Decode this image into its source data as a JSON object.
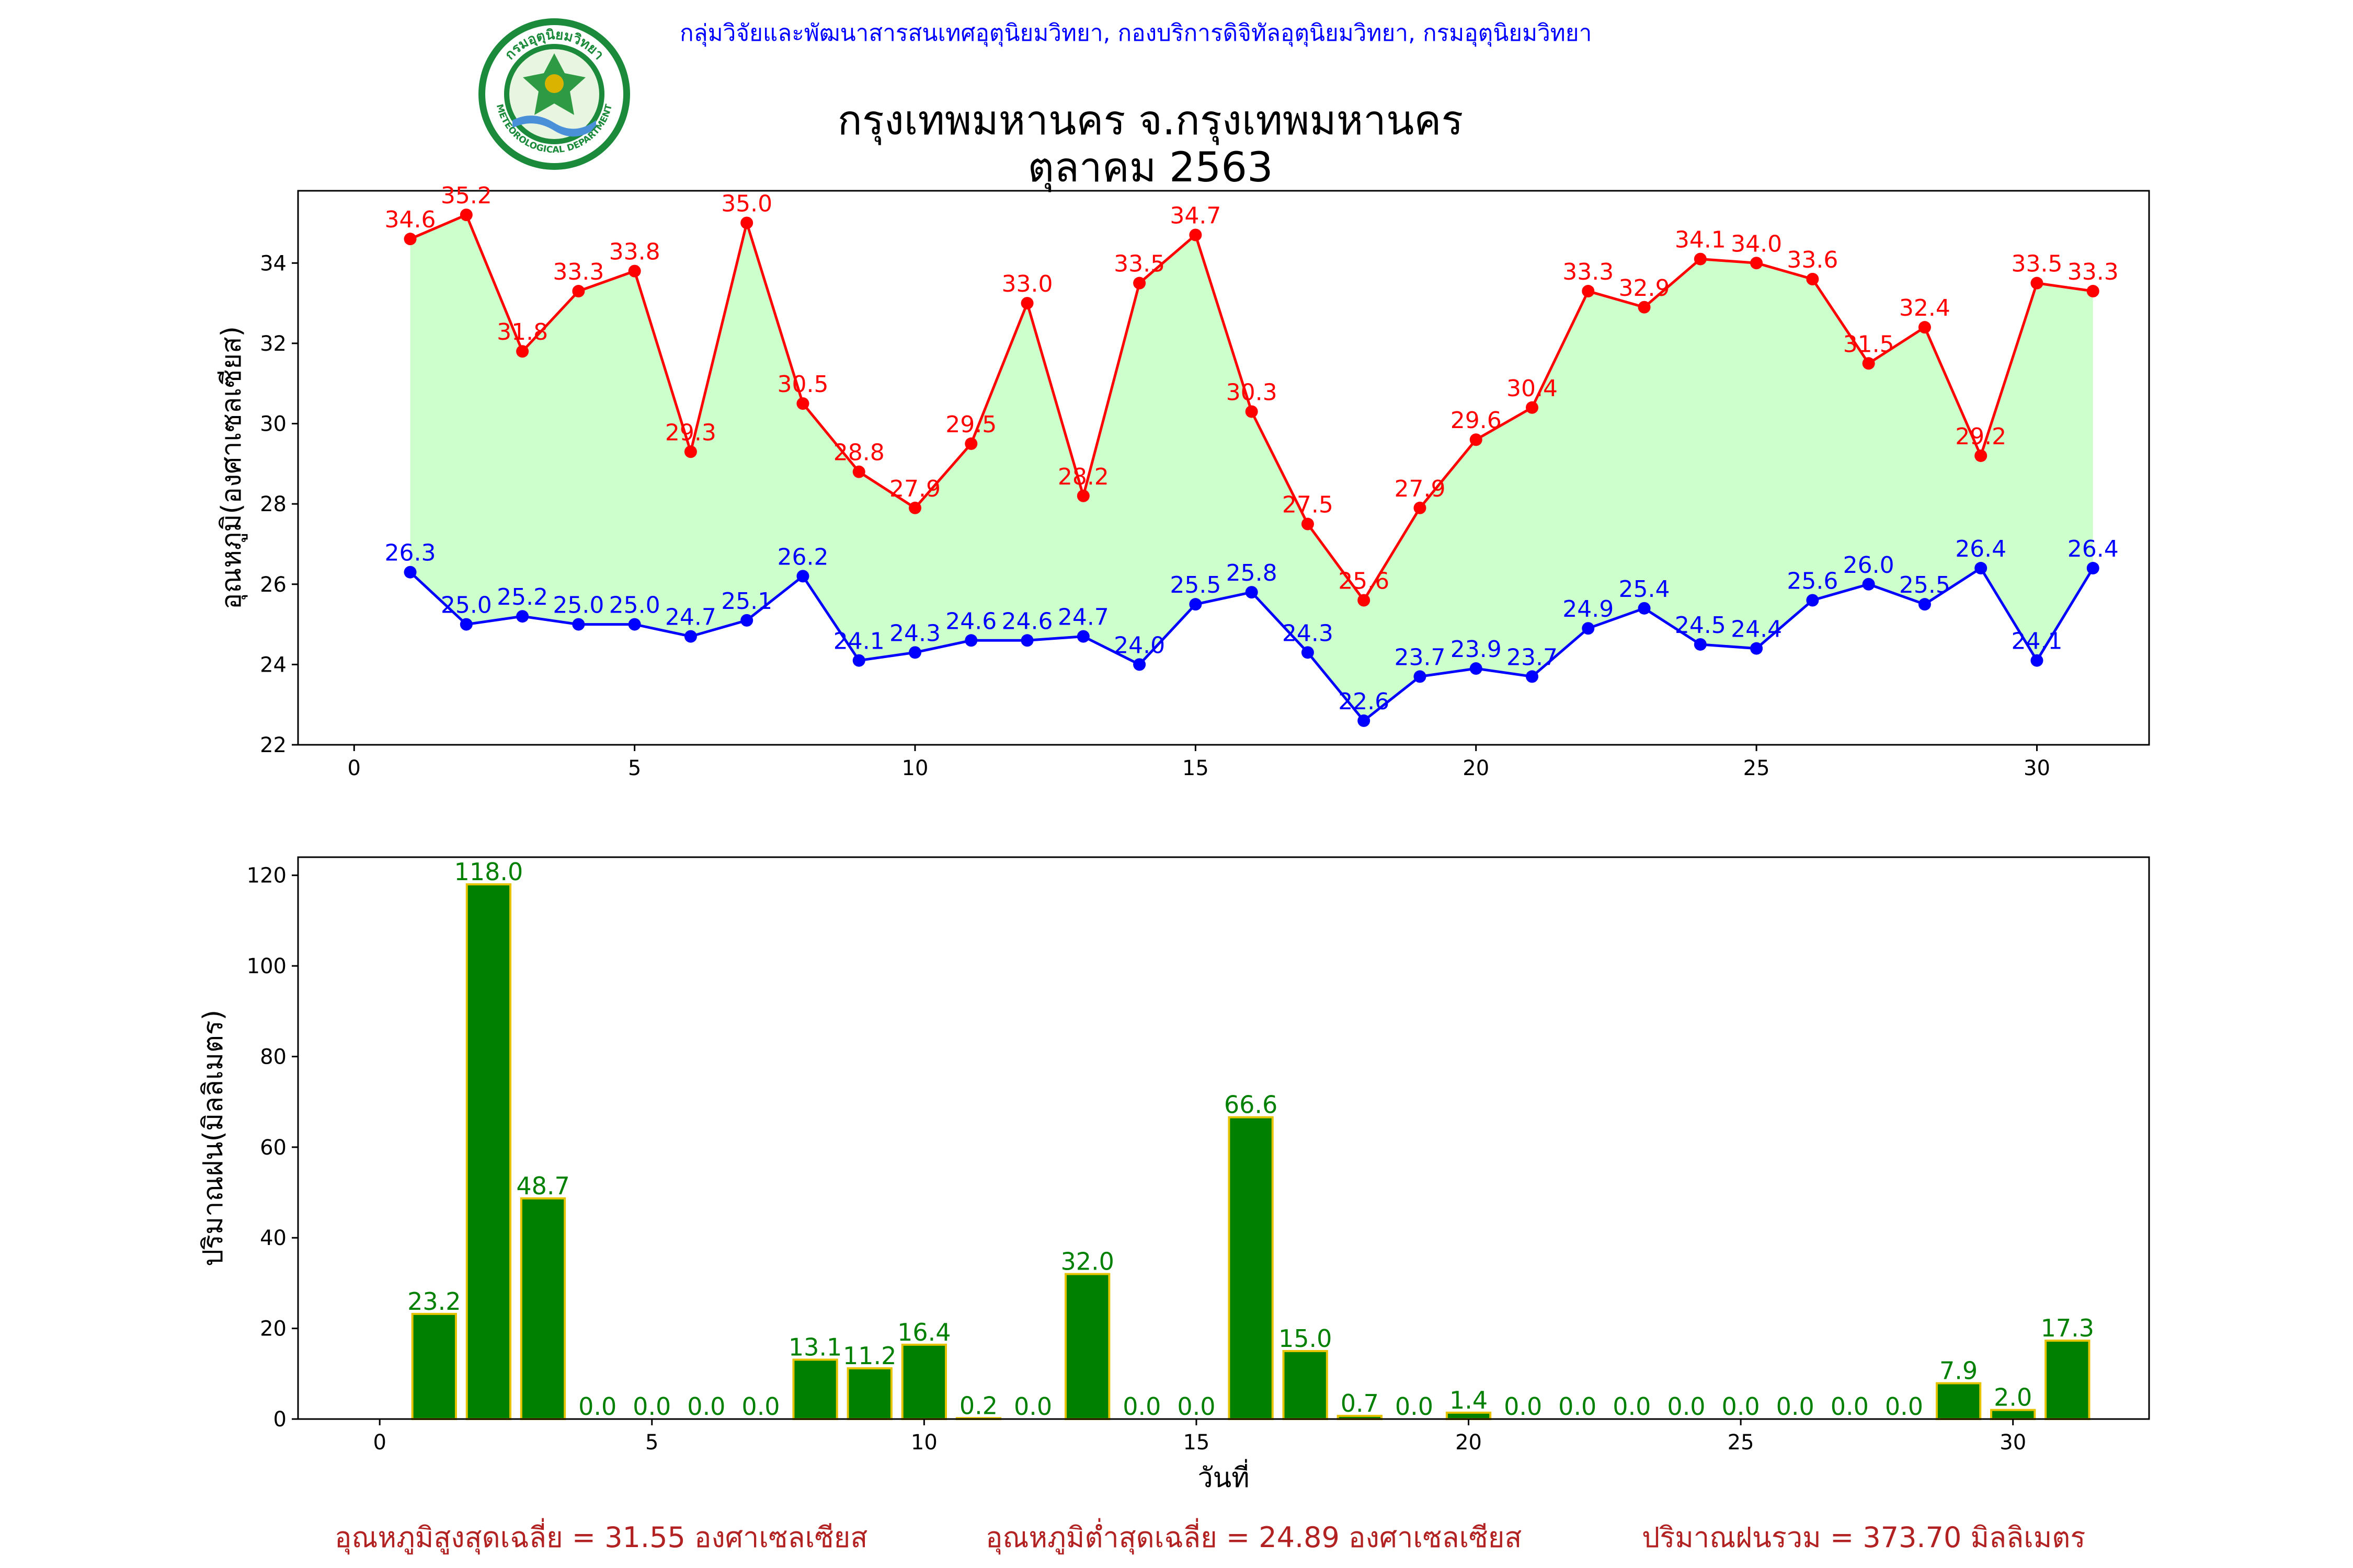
{
  "header": {
    "credit": "กลุ่มวิจัยและพัฒนาสารสนเทศอุตุนิยมวิทยา, กองบริการดิจิทัลอุตุนิยมวิทยา, กรมอุตุนิยมวิทยา",
    "title_line1": "กรุงเทพมหานคร จ.กรุงเทพมหานคร",
    "title_line2": "ตุลาคม 2563",
    "logo_text_top": "กรมอุตุนิยมวิทยา",
    "logo_text_bottom": "METEOROLOGICAL DEPARTMENT"
  },
  "chart_data": [
    {
      "type": "line",
      "ylabel": "อุณหภูมิ(องศาเซลเซียส)",
      "xlabel": "",
      "xlim": [
        -1,
        32
      ],
      "ylim": [
        22,
        35.8
      ],
      "xticks": [
        0,
        5,
        10,
        15,
        20,
        25,
        30
      ],
      "yticks": [
        22,
        24,
        26,
        28,
        30,
        32,
        34
      ],
      "fill_between": true,
      "colors": {
        "max": "#ff0000",
        "min": "#0000ff",
        "fill": "#ccffcc"
      },
      "x": [
        1,
        2,
        3,
        4,
        5,
        6,
        7,
        8,
        9,
        10,
        11,
        12,
        13,
        14,
        15,
        16,
        17,
        18,
        19,
        20,
        21,
        22,
        23,
        24,
        25,
        26,
        27,
        28,
        29,
        30,
        31
      ],
      "series": [
        {
          "key": "max",
          "values": [
            34.6,
            35.2,
            31.8,
            33.3,
            33.8,
            29.3,
            35.0,
            30.5,
            28.8,
            27.9,
            29.5,
            33.0,
            28.2,
            33.5,
            34.7,
            30.3,
            27.5,
            25.6,
            27.9,
            29.6,
            30.4,
            33.3,
            32.9,
            34.1,
            34.0,
            33.6,
            31.5,
            32.4,
            29.2,
            33.5,
            33.3
          ]
        },
        {
          "key": "min",
          "values": [
            26.3,
            25.0,
            25.2,
            25.0,
            25.0,
            24.7,
            25.1,
            26.2,
            24.1,
            24.3,
            24.6,
            24.6,
            24.7,
            24.0,
            25.5,
            25.8,
            24.3,
            22.6,
            23.7,
            23.9,
            23.7,
            24.9,
            25.4,
            24.5,
            24.4,
            25.6,
            26.0,
            25.5,
            26.4,
            24.1,
            26.4
          ]
        }
      ]
    },
    {
      "type": "bar",
      "ylabel": "ปริมาณฝน(มิลลิเมตร)",
      "xlabel": "วันที่",
      "xlim": [
        -1.5,
        32.5
      ],
      "ylim": [
        0,
        124
      ],
      "xticks": [
        0,
        5,
        10,
        15,
        20,
        25,
        30
      ],
      "yticks": [
        0,
        20,
        40,
        60,
        80,
        100,
        120
      ],
      "colors": {
        "bar": "#008000",
        "edge": "#e6c300",
        "label": "#008000"
      },
      "x": [
        1,
        2,
        3,
        4,
        5,
        6,
        7,
        8,
        9,
        10,
        11,
        12,
        13,
        14,
        15,
        16,
        17,
        18,
        19,
        20,
        21,
        22,
        23,
        24,
        25,
        26,
        27,
        28,
        29,
        30,
        31
      ],
      "values": [
        23.2,
        118.0,
        48.7,
        0.0,
        0.0,
        0.0,
        0.0,
        13.1,
        11.2,
        16.4,
        0.2,
        0.0,
        32.0,
        0.0,
        0.0,
        66.6,
        15.0,
        0.7,
        0.0,
        1.4,
        0.0,
        0.0,
        0.0,
        0.0,
        0.0,
        0.0,
        0.0,
        0.0,
        7.9,
        2.0,
        17.3
      ]
    }
  ],
  "summary": {
    "avg_max": "อุณหภูมิสูงสุดเฉลี่ย = 31.55 องศาเซลเซียส",
    "avg_min": "อุณหภูมิต่ำสุดเฉลี่ย = 24.89 องศาเซลเซียส",
    "total_rain": "ปริมาณฝนรวม = 373.70 มิลลิเมตร"
  }
}
